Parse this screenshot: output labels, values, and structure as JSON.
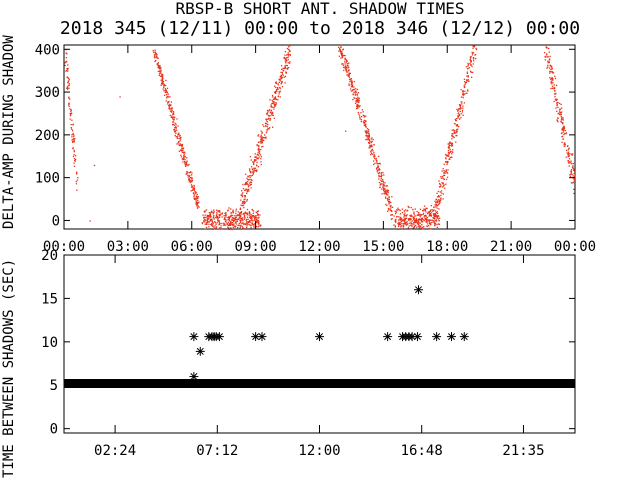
{
  "page": {
    "title": "RBSP-B SHORT ANT. SHADOW TIMES",
    "subtitle": "2018 345 (12/11) 00:00 to 2018 346 (12/12) 00:00"
  },
  "chart_data": [
    {
      "type": "scatter",
      "name": "top-panel",
      "ylabel": "DELTA-AMP DURING SHADOW",
      "xlim": [
        0,
        24
      ],
      "ylim": [
        -20,
        410
      ],
      "x_tick_labels": [
        "00:00",
        "03:00",
        "06:00",
        "09:00",
        "12:00",
        "15:00",
        "18:00",
        "21:00",
        "00:00"
      ],
      "x_tick_hours": [
        0,
        3,
        6,
        9,
        12,
        15,
        18,
        21,
        24
      ],
      "y_ticks": [
        0,
        100,
        200,
        300,
        400
      ],
      "marker_color": "#e8341c",
      "bands": [
        {
          "start": 0.0,
          "end": 0.6,
          "y_top": 410,
          "y_bottom": 80,
          "width": 0.35
        },
        {
          "start": 4.2,
          "end": 6.3,
          "y_top": 400,
          "y_bottom": 30,
          "width": 0.3
        },
        {
          "start": 6.5,
          "end": 9.2,
          "y_top": 0,
          "y_bottom": 0,
          "width": 0.4
        },
        {
          "start": 8.2,
          "end": 10.6,
          "y_top": 20,
          "y_bottom": 400,
          "width": 0.5
        },
        {
          "start": 12.9,
          "end": 15.4,
          "y_top": 410,
          "y_bottom": 20,
          "width": 0.35
        },
        {
          "start": 15.5,
          "end": 17.6,
          "y_top": 0,
          "y_bottom": 10,
          "width": 0.4
        },
        {
          "start": 17.4,
          "end": 19.3,
          "y_top": 20,
          "y_bottom": 410,
          "width": 0.45
        },
        {
          "start": 22.6,
          "end": 24.0,
          "y_top": 400,
          "y_bottom": 80,
          "width": 0.5
        }
      ],
      "isolated_points": [
        {
          "x": 1.4,
          "y": 130
        },
        {
          "x": 2.6,
          "y": 290
        },
        {
          "x": 1.2,
          "y": 0
        },
        {
          "x": 13.2,
          "y": 210
        }
      ]
    },
    {
      "type": "scatter",
      "name": "bottom-panel",
      "ylabel": "TIME BETWEEN SHADOWS (SEC)",
      "xlim": [
        0,
        24
      ],
      "ylim": [
        -0.5,
        20
      ],
      "x_tick_labels": [
        "02:24",
        "07:12",
        "12:00",
        "16:48",
        "21:35"
      ],
      "x_tick_hours": [
        2.4,
        7.2,
        12.0,
        16.8,
        21.58
      ],
      "y_ticks": [
        0,
        5,
        10,
        15,
        20
      ],
      "baseline_value": 5.2,
      "baseline_range": [
        0,
        24
      ],
      "outliers": [
        {
          "x": 6.1,
          "y": 10.6
        },
        {
          "x": 6.1,
          "y": 6.0
        },
        {
          "x": 6.4,
          "y": 8.9
        },
        {
          "x": 6.8,
          "y": 10.6
        },
        {
          "x": 6.95,
          "y": 10.6
        },
        {
          "x": 7.05,
          "y": 10.6
        },
        {
          "x": 7.15,
          "y": 10.6
        },
        {
          "x": 7.3,
          "y": 10.6
        },
        {
          "x": 9.0,
          "y": 10.6
        },
        {
          "x": 9.3,
          "y": 10.6
        },
        {
          "x": 12.0,
          "y": 10.6
        },
        {
          "x": 15.2,
          "y": 10.6
        },
        {
          "x": 15.9,
          "y": 10.6
        },
        {
          "x": 16.05,
          "y": 10.6
        },
        {
          "x": 16.2,
          "y": 10.6
        },
        {
          "x": 16.35,
          "y": 10.6
        },
        {
          "x": 16.6,
          "y": 10.6
        },
        {
          "x": 16.65,
          "y": 16.0
        },
        {
          "x": 17.5,
          "y": 10.6
        },
        {
          "x": 18.2,
          "y": 10.6
        },
        {
          "x": 18.8,
          "y": 10.6
        }
      ]
    }
  ]
}
